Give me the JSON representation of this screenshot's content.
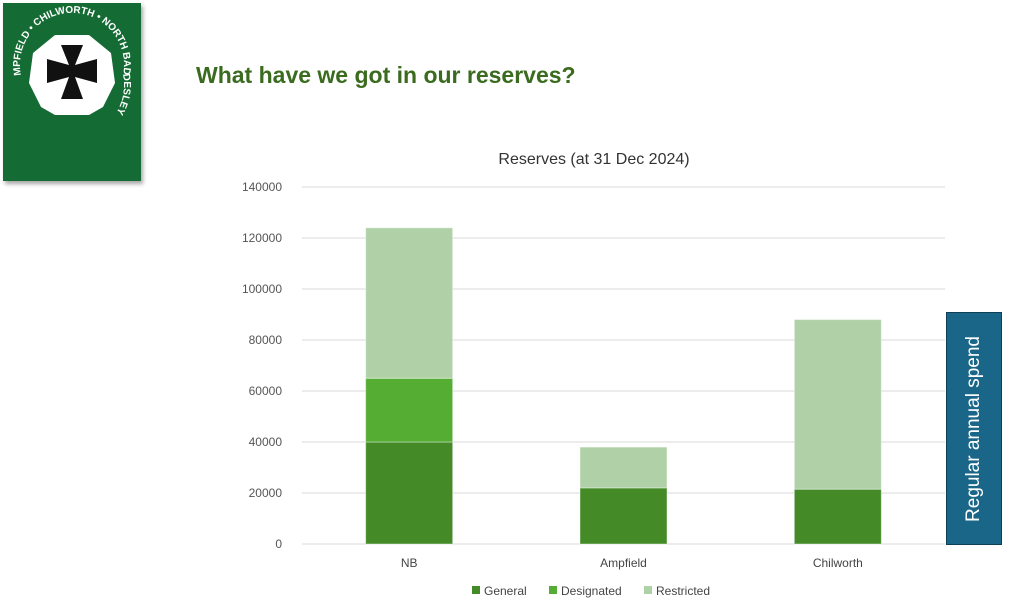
{
  "slide": {
    "title": "What have we got in our reserves?"
  },
  "logo": {
    "text_top": "CHILWORTH • NORTH BADDESLEY",
    "text_left": "AMPFIELD •"
  },
  "annotation": {
    "label": "Regular annual spend"
  },
  "chart_data": {
    "type": "bar",
    "stacked": true,
    "title": "Reserves (at 31 Dec 2024)",
    "categories": [
      "NB",
      "Ampfield",
      "Chilworth"
    ],
    "series": [
      {
        "name": "General",
        "color": "#448b27",
        "values": [
          40000,
          22000,
          21500
        ]
      },
      {
        "name": "Designated",
        "color": "#55ad33",
        "values": [
          25000,
          0,
          0
        ]
      },
      {
        "name": "Restricted",
        "color": "#b0d1a8",
        "values": [
          59000,
          16000,
          66500
        ]
      }
    ],
    "ylim": [
      0,
      140000
    ],
    "yticks": [
      0,
      20000,
      40000,
      60000,
      80000,
      100000,
      120000,
      140000
    ],
    "grid": true,
    "legend": "bottom",
    "xlabel": "",
    "ylabel": ""
  }
}
